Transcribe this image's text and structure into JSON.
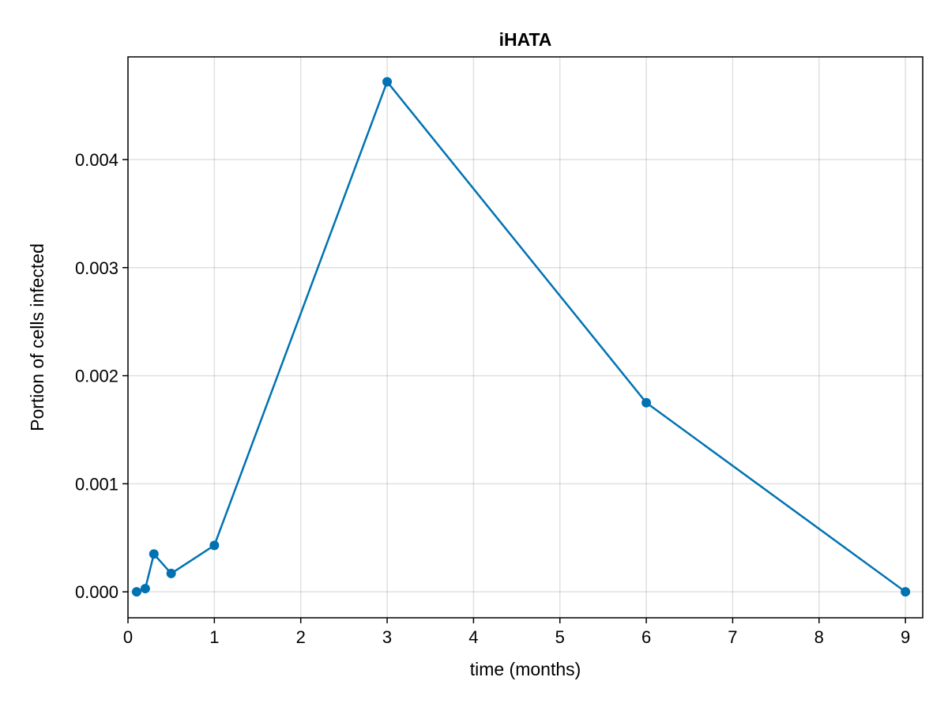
{
  "chart_data": {
    "type": "line",
    "title": "iHATA",
    "xlabel": "time (months)",
    "ylabel": "Portion of cells infected",
    "xlim": [
      0,
      9.2
    ],
    "ylim": [
      -0.00024,
      0.00495
    ],
    "xticks": [
      0,
      1,
      2,
      3,
      4,
      5,
      6,
      7,
      8,
      9
    ],
    "xtick_labels": [
      "0",
      "1",
      "2",
      "3",
      "4",
      "5",
      "6",
      "7",
      "8",
      "9"
    ],
    "yticks": [
      0.0,
      0.001,
      0.002,
      0.003,
      0.004
    ],
    "ytick_labels": [
      "0.000",
      "0.001",
      "0.002",
      "0.003",
      "0.004"
    ],
    "grid": true,
    "markers": true,
    "series": [
      {
        "color": "#0072b2",
        "x": [
          0.1,
          0.2,
          0.3,
          0.5,
          1,
          3,
          6,
          9
        ],
        "y": [
          0.0,
          3e-05,
          0.00035,
          0.00017,
          0.00043,
          0.00472,
          0.00175,
          0.0
        ]
      }
    ]
  }
}
